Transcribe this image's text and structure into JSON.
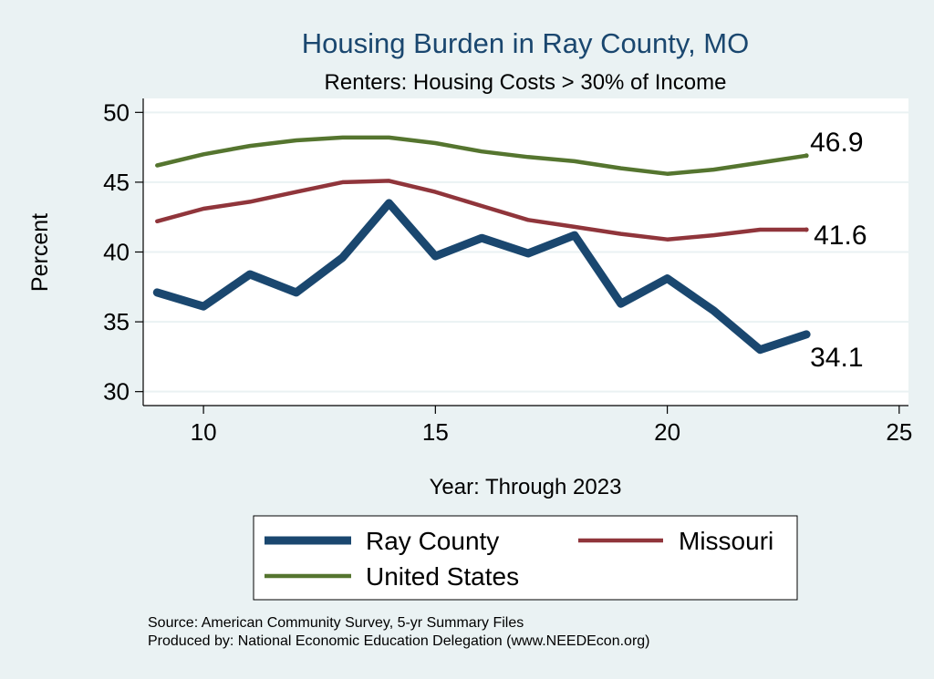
{
  "chart_data": {
    "type": "line",
    "title": "Housing Burden in Ray County, MO",
    "subtitle": "Renters: Housing Costs > 30% of Income",
    "xlabel": "Year: Through 2023",
    "ylabel": "Percent",
    "xlim": [
      8.7,
      25.2
    ],
    "ylim": [
      29,
      51
    ],
    "xticks": [
      10,
      15,
      20,
      25
    ],
    "yticks": [
      30,
      35,
      40,
      45,
      50
    ],
    "grid": true,
    "legend_position": "bottom",
    "x": [
      9,
      10,
      11,
      12,
      13,
      14,
      15,
      16,
      17,
      18,
      19,
      20,
      21,
      22,
      23
    ],
    "series": [
      {
        "name": "Ray County",
        "color": "#1a476f",
        "values": [
          37.1,
          36.1,
          38.4,
          37.1,
          39.6,
          43.5,
          39.7,
          41.0,
          39.9,
          41.2,
          36.3,
          38.1,
          35.8,
          33.0,
          34.1
        ],
        "end_label": "34.1"
      },
      {
        "name": "Missouri",
        "color": "#90353b",
        "values": [
          42.2,
          43.1,
          43.6,
          44.3,
          45.0,
          45.1,
          44.3,
          43.3,
          42.3,
          41.8,
          41.3,
          40.9,
          41.2,
          41.6,
          41.6
        ],
        "end_label": "41.6"
      },
      {
        "name": "United States",
        "color": "#55752f",
        "values": [
          46.2,
          47.0,
          47.6,
          48.0,
          48.2,
          48.2,
          47.8,
          47.2,
          46.8,
          46.5,
          46.0,
          45.6,
          45.9,
          46.4,
          46.9
        ],
        "end_label": "46.9"
      }
    ],
    "source_lines": [
      "Source: American Community Survey, 5-yr Summary Files",
      "Produced by: National Economic Education Delegation (www.NEEDEcon.org)"
    ]
  }
}
